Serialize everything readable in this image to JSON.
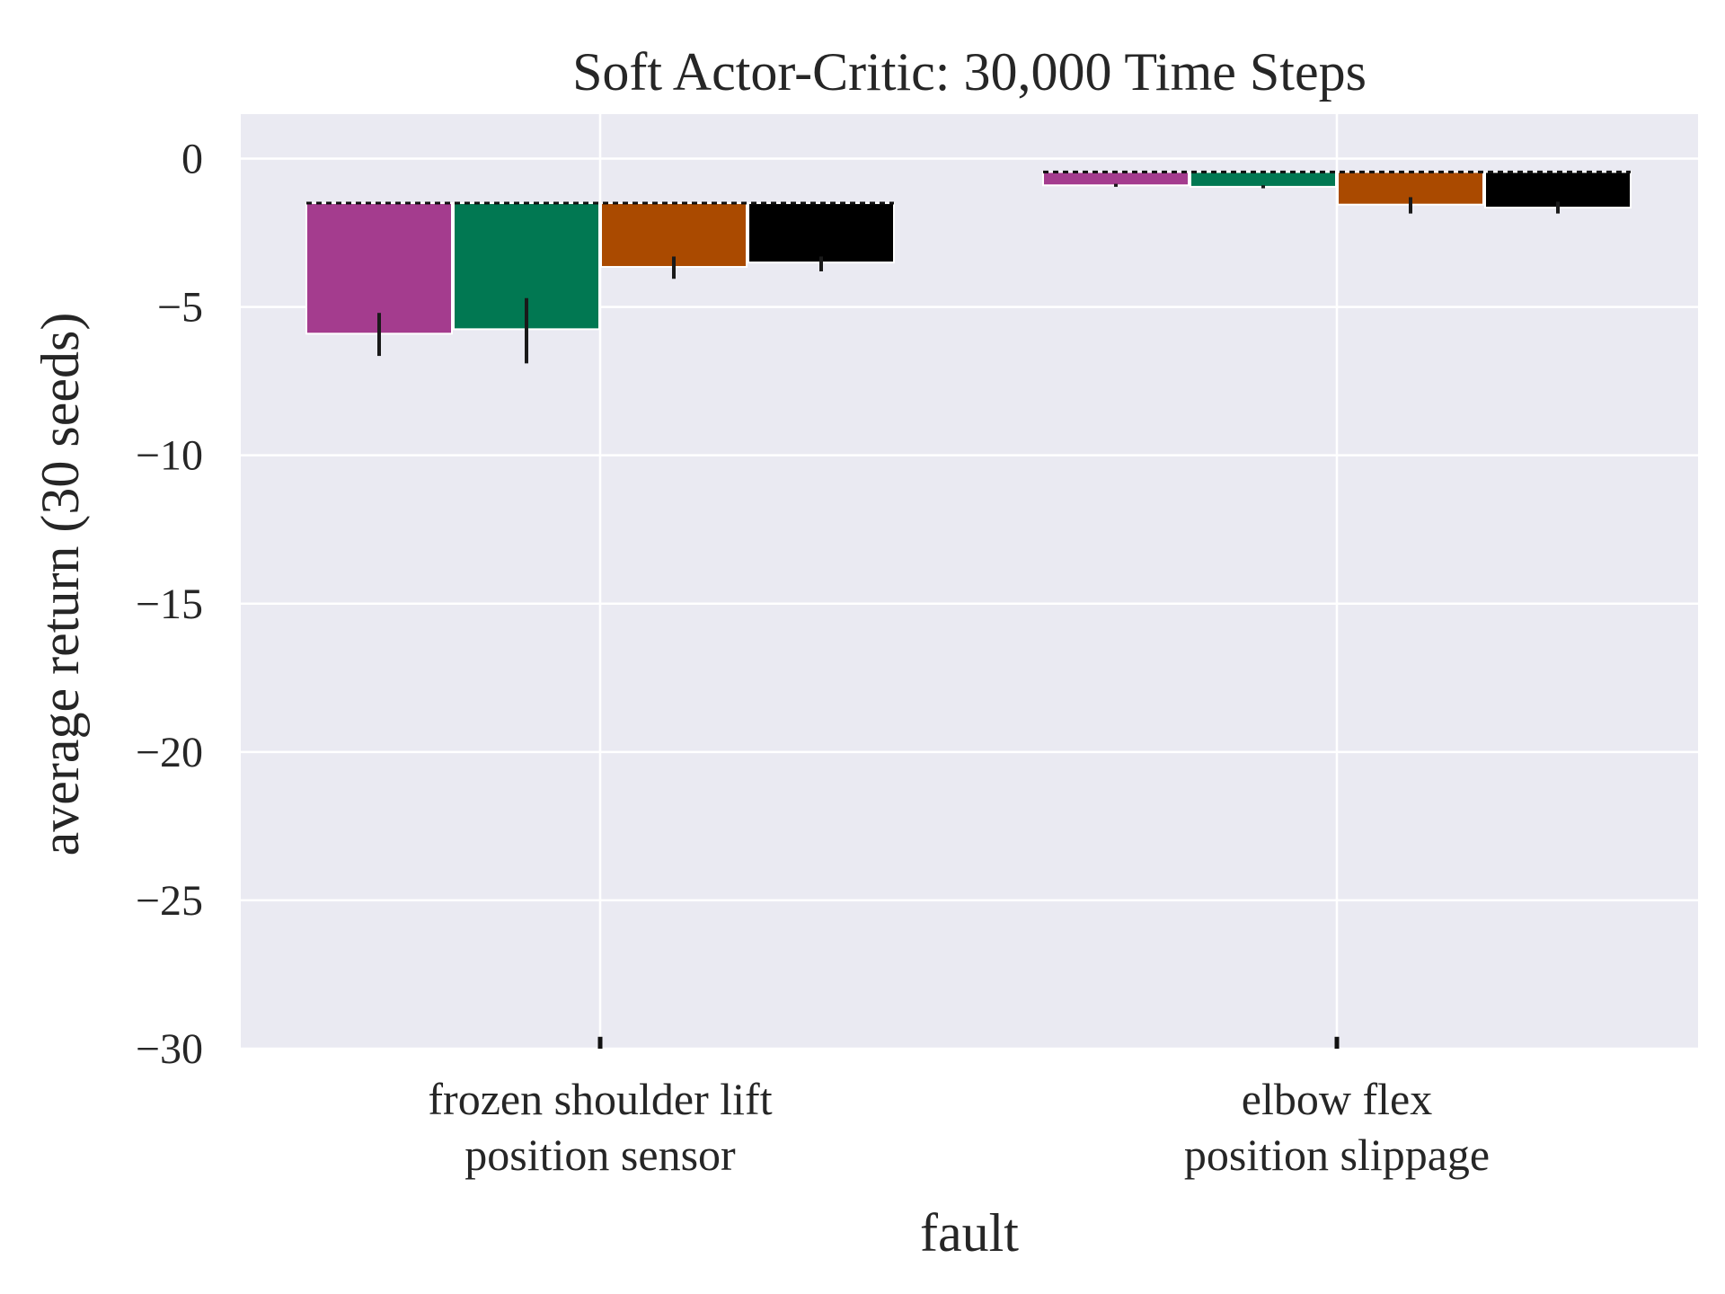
{
  "chart_data": {
    "type": "bar",
    "title": "Soft Actor-Critic: 30,000 Time Steps",
    "xlabel": "fault",
    "ylabel": "average return (30 seeds)",
    "ylim": [
      -30,
      1.5
    ],
    "yticks": [
      0,
      -5,
      -10,
      -15,
      -20,
      -25,
      -30
    ],
    "ytick_labels": [
      "0",
      "−5",
      "−10",
      "−15",
      "−20",
      "−25",
      "−30"
    ],
    "categories": [
      [
        "frozen shoulder lift",
        "position sensor"
      ],
      [
        "elbow flex",
        "position slippage"
      ]
    ],
    "baseline": [
      -1.5,
      -0.45
    ],
    "series": [
      {
        "color": "#a43c8e",
        "values": [
          -5.9,
          -0.9
        ],
        "error": [
          [
            -6.65,
            -5.2
          ],
          [
            -0.95,
            -0.85
          ]
        ]
      },
      {
        "color": "#017852",
        "values": [
          -5.75,
          -0.95
        ],
        "error": [
          [
            -6.9,
            -4.7
          ],
          [
            -1.0,
            -0.9
          ]
        ]
      },
      {
        "color": "#aa4a00",
        "values": [
          -3.65,
          -1.55
        ],
        "error": [
          [
            -4.05,
            -3.3
          ],
          [
            -1.85,
            -1.3
          ]
        ]
      },
      {
        "color": "#000000",
        "values": [
          -3.5,
          -1.65
        ],
        "error": [
          [
            -3.8,
            -3.3
          ],
          [
            -1.85,
            -1.45
          ]
        ]
      }
    ],
    "extra_marks": {
      "values": [
        -29.6,
        -29.6
      ]
    },
    "grid": true,
    "background": "#eaeaf2",
    "legend": "none"
  }
}
